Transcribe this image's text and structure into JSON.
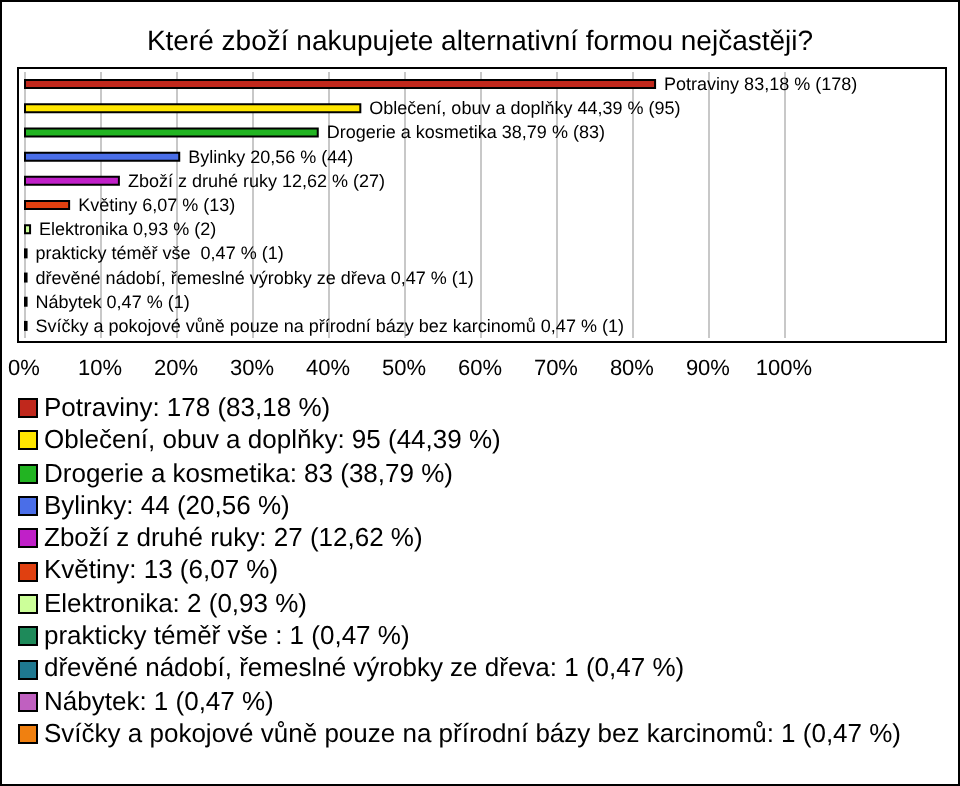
{
  "chart_data": {
    "type": "bar",
    "orientation": "horizontal",
    "title": "Které zboží nakupujete alternativní formou nejčastěji?",
    "categories": [
      null,
      null,
      null,
      null,
      null,
      null,
      null,
      null,
      null,
      null,
      null
    ],
    "values": [
      83.18,
      44.39,
      38.79,
      20.56,
      12.62,
      6.07,
      0.93,
      0.47,
      0.47,
      0.47,
      0.47
    ],
    "colors": [
      "#c0281c",
      "#ffe600",
      "#22b422",
      "#4a6ee8",
      "#c020c8",
      "#e04010",
      "#ccff99",
      "#1e8a5a",
      "#1e7890",
      "#c060c0",
      "#f08010"
    ],
    "value_labels": [
      "Potraviny 83,18 % (178)",
      "Oblečení, obuv a doplňky 44,39 % (95)",
      "Drogerie a kosmetika 38,79 % (83)",
      "Bylinky 20,56 % (44)",
      "Zboží z druhé ruky 12,62 % (27)",
      "Květiny 6,07 % (13)",
      "Elektronika 0,93 % (2)",
      "prakticky téměř vše  0,47 % (1)",
      "dřevěné nádobí, řemeslné výrobky ze dřeva 0,47 % (1)",
      "Nábytek 0,47 % (1)",
      "Svíčky a pokojové vůně pouze na přírodní bázy bez karcinomů 0,47 % (1)"
    ],
    "xlim": [
      0,
      121.2
    ],
    "xticks": [
      {
        "value": 0,
        "label": "0%"
      },
      {
        "value": 10,
        "label": "10%"
      },
      {
        "value": 20,
        "label": "20%"
      },
      {
        "value": 30,
        "label": "30%"
      },
      {
        "value": 40,
        "label": "40%"
      },
      {
        "value": 50,
        "label": "50%"
      },
      {
        "value": 60,
        "label": "60%"
      },
      {
        "value": 70,
        "label": "70%"
      },
      {
        "value": 80,
        "label": "80%"
      },
      {
        "value": 90,
        "label": "90%"
      },
      {
        "value": 100,
        "label": "100%"
      }
    ],
    "grid": "x",
    "tick_labels": "x",
    "annotations": [
      "Potraviny: 178 (83,18 %)",
      "Oblečení, obuv a doplňky: 95 (44,39 %)",
      "Drogerie a kosmetika: 83 (38,79 %)",
      "Bylinky: 44 (20,56 %)",
      "Zboží z druhé ruky: 27 (12,62 %)",
      "Květiny: 13 (6,07 %)",
      "Elektronika: 2 (0,93 %)",
      "prakticky téměř vše : 1 (0,47 %)",
      "dřevěné nádobí, řemeslné výrobky ze dřeva: 1 (0,47 %)",
      "Nábytek: 1 (0,47 %)",
      "Svíčky a pokojové vůně pouze na přírodní bázy bez karcinomů: 1 (0,47 %)"
    ]
  }
}
